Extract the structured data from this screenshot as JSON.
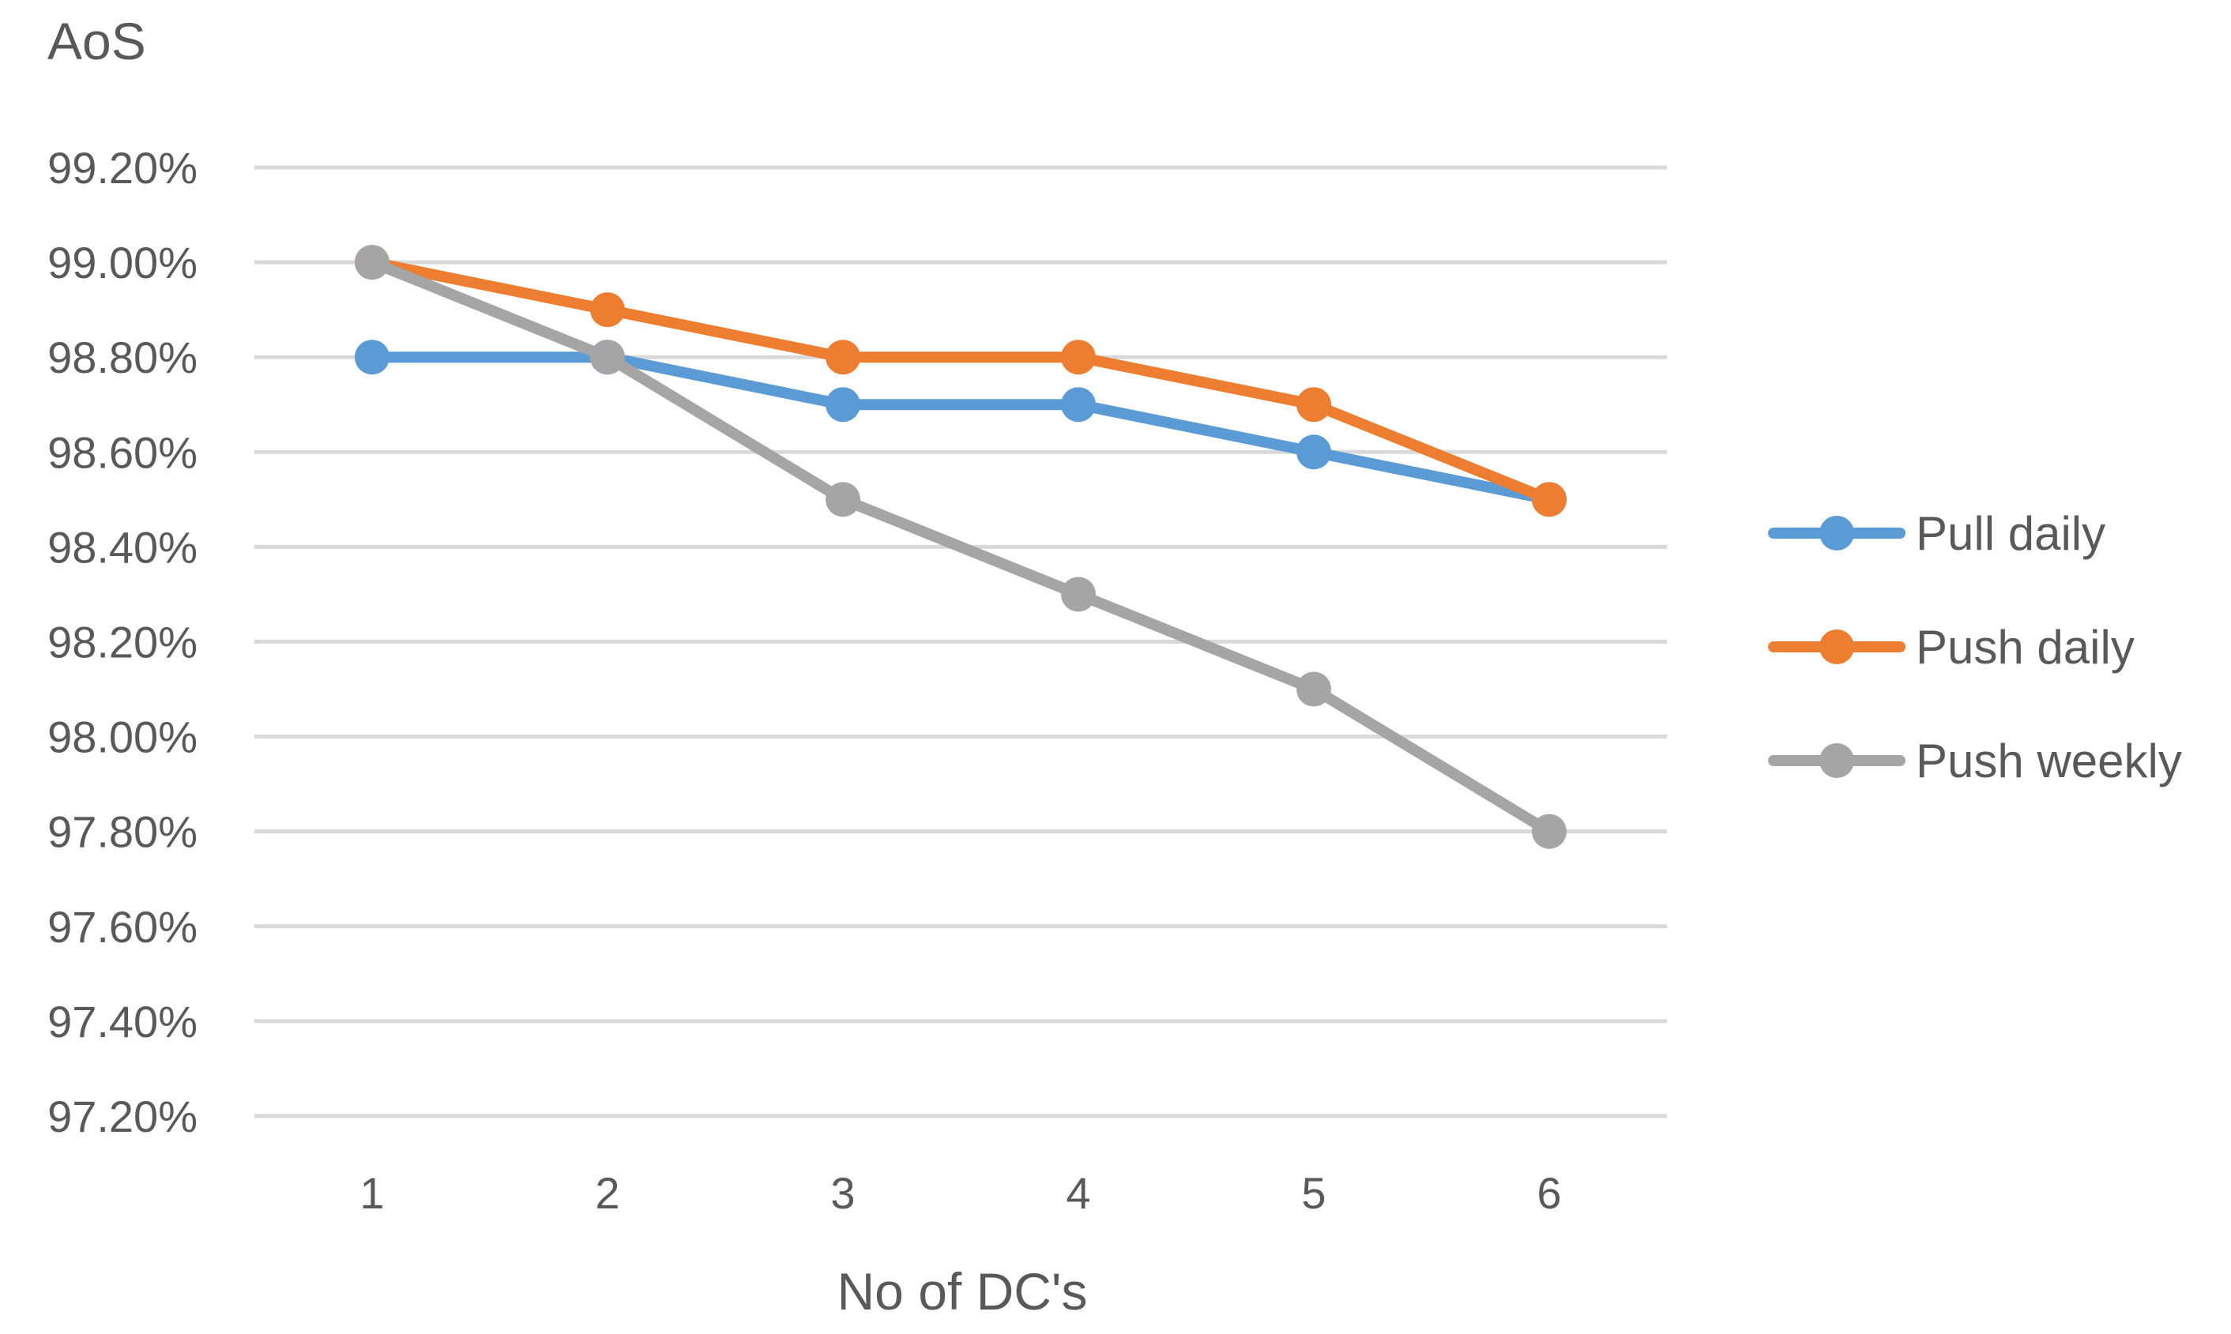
{
  "chart_data": {
    "type": "line",
    "title": "",
    "ylabel": "AoS",
    "xlabel": "No of DC's",
    "categories": [
      "1",
      "2",
      "3",
      "4",
      "5",
      "6"
    ],
    "ylim": [
      0.972,
      0.992
    ],
    "yticks": [
      0.972,
      0.974,
      0.976,
      0.978,
      0.98,
      0.982,
      0.984,
      0.986,
      0.988,
      0.99,
      0.992
    ],
    "ytick_labels": [
      "97.20%",
      "97.40%",
      "97.60%",
      "97.80%",
      "98.00%",
      "98.20%",
      "98.40%",
      "98.60%",
      "98.80%",
      "99.00%",
      "99.20%"
    ],
    "grid": true,
    "legend_position": "right",
    "series": [
      {
        "name": "Pull daily",
        "color": "#5b9bd5",
        "values": [
          0.988,
          0.988,
          0.987,
          0.987,
          0.986,
          0.985
        ]
      },
      {
        "name": "Push daily",
        "color": "#ed7d31",
        "values": [
          0.99,
          0.989,
          0.988,
          0.988,
          0.987,
          0.985
        ]
      },
      {
        "name": "Push weekly",
        "color": "#a5a5a5",
        "values": [
          0.99,
          0.988,
          0.985,
          0.983,
          0.981,
          0.978
        ]
      }
    ]
  }
}
